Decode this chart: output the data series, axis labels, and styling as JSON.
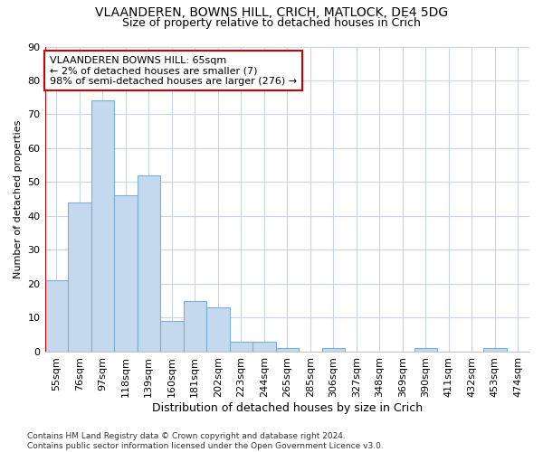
{
  "title1": "VLAANDEREN, BOWNS HILL, CRICH, MATLOCK, DE4 5DG",
  "title2": "Size of property relative to detached houses in Crich",
  "xlabel": "Distribution of detached houses by size in Crich",
  "ylabel": "Number of detached properties",
  "footer": "Contains HM Land Registry data © Crown copyright and database right 2024.\nContains public sector information licensed under the Open Government Licence v3.0.",
  "categories": [
    "55sqm",
    "76sqm",
    "97sqm",
    "118sqm",
    "139sqm",
    "160sqm",
    "181sqm",
    "202sqm",
    "223sqm",
    "244sqm",
    "265sqm",
    "285sqm",
    "306sqm",
    "327sqm",
    "348sqm",
    "369sqm",
    "390sqm",
    "411sqm",
    "432sqm",
    "453sqm",
    "474sqm"
  ],
  "values": [
    21,
    44,
    74,
    46,
    52,
    9,
    15,
    13,
    3,
    3,
    1,
    0,
    1,
    0,
    0,
    0,
    1,
    0,
    0,
    1,
    0
  ],
  "bar_color": "#c5d9ee",
  "bar_edge_color": "#7bafd4",
  "annotation_text": "VLAANDEREN BOWNS HILL: 65sqm\n← 2% of detached houses are smaller (7)\n98% of semi-detached houses are larger (276) →",
  "annotation_box_color": "#ffffff",
  "annotation_box_edge": "#cc0000",
  "vline_color": "#cc0000",
  "ylim": [
    0,
    90
  ],
  "yticks": [
    0,
    10,
    20,
    30,
    40,
    50,
    60,
    70,
    80,
    90
  ],
  "grid_color": "#c8d4e8",
  "plot_bg": "#ffffff",
  "title1_fontsize": 10,
  "title2_fontsize": 9,
  "xlabel_fontsize": 9,
  "ylabel_fontsize": 8,
  "tick_fontsize": 8,
  "annotation_fontsize": 8,
  "footer_fontsize": 6.5
}
